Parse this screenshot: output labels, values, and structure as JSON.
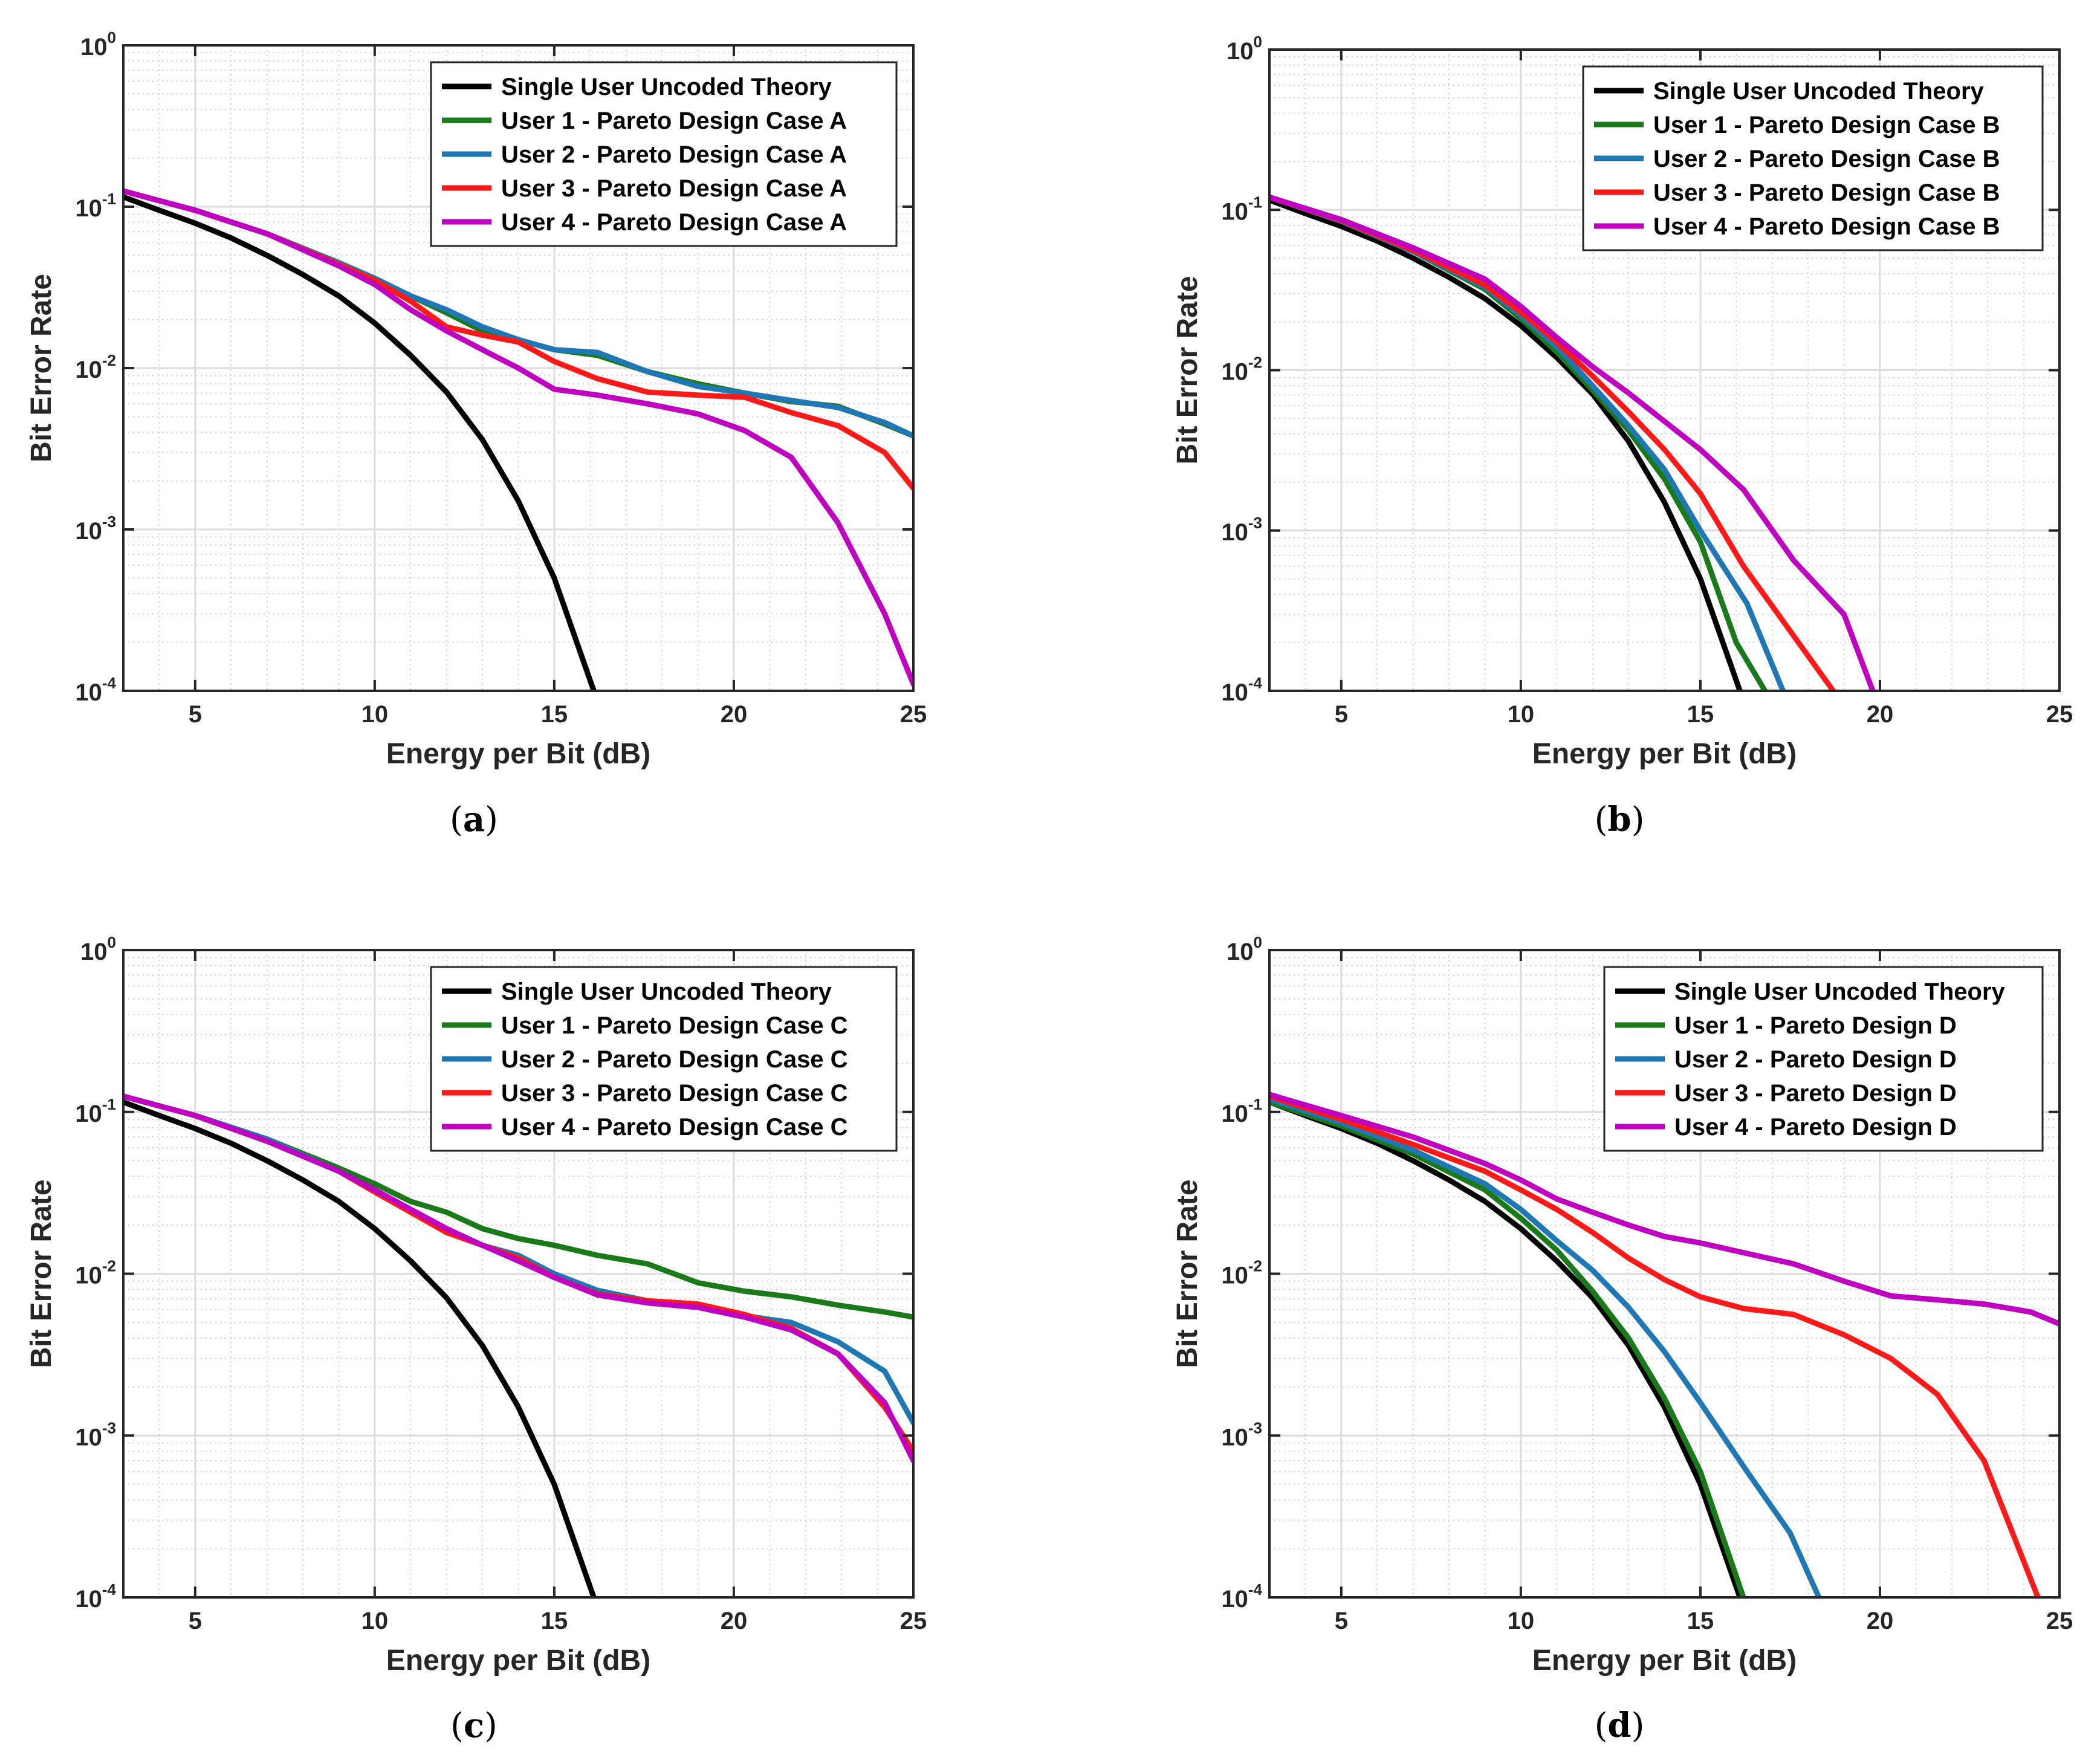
{
  "colors": {
    "series": [
      "#000000",
      "#1a7a1a",
      "#1f77b4",
      "#ff1a1a",
      "#c000c0"
    ],
    "grid_major": "#dcdcdc",
    "grid_minor": "#cfcfcf",
    "axis": "#262626"
  },
  "chart_data": [
    {
      "type": "line",
      "panel": "a",
      "caption_letter": "a",
      "xlabel": "Energy per Bit (dB)",
      "ylabel": "Bit Error Rate",
      "yscale": "log",
      "xlim": [
        3,
        25
      ],
      "ylim": [
        0.0001,
        1
      ],
      "xticks": [
        5,
        10,
        15,
        20,
        25
      ],
      "yticks_exp": [
        "0",
        "-1",
        "-2",
        "-3",
        "-4"
      ],
      "legend_position": "top-right",
      "series": [
        {
          "name": "Single User Uncoded Theory",
          "x": [
            3,
            4,
            5,
            6,
            7,
            8,
            9,
            10,
            11,
            12,
            13,
            14,
            15,
            16.1
          ],
          "y": [
            0.115,
            0.095,
            0.079,
            0.064,
            0.05,
            0.038,
            0.028,
            0.019,
            0.012,
            0.0071,
            0.0036,
            0.0015,
            0.0005,
            0.0001
          ]
        },
        {
          "name": "User 1 - Pareto Design Case A",
          "x": [
            3,
            5,
            7,
            9,
            10,
            11,
            12,
            13,
            14,
            15,
            16.2,
            17.6,
            19,
            20.3,
            21.6,
            22.9,
            24.2,
            25
          ],
          "y": [
            0.125,
            0.095,
            0.068,
            0.045,
            0.036,
            0.028,
            0.022,
            0.017,
            0.015,
            0.013,
            0.012,
            0.0095,
            0.008,
            0.007,
            0.0062,
            0.0058,
            0.0045,
            0.0038
          ]
        },
        {
          "name": "User 2 - Pareto Design Case A",
          "x": [
            3,
            5,
            7,
            9,
            10,
            11,
            12,
            13,
            14,
            15,
            16.2,
            17.6,
            19,
            20.3,
            21.6,
            22.9,
            24.2,
            25
          ],
          "y": [
            0.125,
            0.095,
            0.068,
            0.045,
            0.036,
            0.028,
            0.023,
            0.018,
            0.015,
            0.013,
            0.0125,
            0.0095,
            0.0077,
            0.007,
            0.0063,
            0.0057,
            0.0046,
            0.0038
          ]
        },
        {
          "name": "User 3 - Pareto Design Case A",
          "x": [
            3,
            5,
            7,
            9,
            10,
            11,
            12,
            13,
            14,
            15,
            16.2,
            17.6,
            19,
            20.3,
            21.6,
            22.9,
            24.2,
            25
          ],
          "y": [
            0.125,
            0.095,
            0.068,
            0.044,
            0.035,
            0.026,
            0.018,
            0.016,
            0.0145,
            0.011,
            0.0086,
            0.0071,
            0.0068,
            0.0066,
            0.0053,
            0.0044,
            0.003,
            0.0018
          ]
        },
        {
          "name": "User 4 - Pareto Design Case A",
          "x": [
            3,
            5,
            7,
            9,
            10,
            11,
            12,
            13,
            14,
            15,
            16.2,
            17.6,
            19,
            20.3,
            21.6,
            22.9,
            24.2,
            25
          ],
          "y": [
            0.125,
            0.095,
            0.068,
            0.043,
            0.033,
            0.023,
            0.017,
            0.013,
            0.01,
            0.0074,
            0.0068,
            0.006,
            0.0052,
            0.0041,
            0.0028,
            0.0011,
            0.0003,
            0.00011
          ]
        }
      ]
    },
    {
      "type": "line",
      "panel": "b",
      "caption_letter": "b",
      "xlabel": "Energy per Bit (dB)",
      "ylabel": "Bit Error Rate",
      "yscale": "log",
      "xlim": [
        3,
        25
      ],
      "ylim": [
        0.0001,
        1
      ],
      "xticks": [
        5,
        10,
        15,
        20,
        25
      ],
      "yticks_exp": [
        "0",
        "-1",
        "-2",
        "-3",
        "-4"
      ],
      "legend_position": "top-right",
      "series": [
        {
          "name": "Single User Uncoded Theory",
          "x": [
            3,
            4,
            5,
            6,
            7,
            8,
            9,
            10,
            11,
            12,
            13,
            14,
            15,
            16.1
          ],
          "y": [
            0.115,
            0.095,
            0.079,
            0.064,
            0.05,
            0.038,
            0.028,
            0.019,
            0.012,
            0.0071,
            0.0036,
            0.0015,
            0.0005,
            0.0001
          ]
        },
        {
          "name": "User 1 - Pareto Design Case B",
          "x": [
            3,
            5,
            7,
            9,
            10,
            11,
            12,
            13,
            14,
            15,
            16,
            16.8
          ],
          "y": [
            0.12,
            0.085,
            0.055,
            0.032,
            0.021,
            0.013,
            0.0075,
            0.0042,
            0.0021,
            0.00085,
            0.0002,
            0.0001
          ]
        },
        {
          "name": "User 2 - Pareto Design Case B",
          "x": [
            3,
            5,
            7,
            9,
            10,
            11,
            12,
            13,
            14,
            15,
            16.3,
            17.3
          ],
          "y": [
            0.12,
            0.085,
            0.055,
            0.033,
            0.022,
            0.014,
            0.008,
            0.0045,
            0.0024,
            0.001,
            0.00035,
            0.0001
          ]
        },
        {
          "name": "User 3 - Pareto Design Case B",
          "x": [
            3,
            5,
            7,
            9,
            10,
            11,
            12,
            13,
            14,
            15,
            16.2,
            17.6,
            18.7
          ],
          "y": [
            0.12,
            0.086,
            0.056,
            0.034,
            0.023,
            0.015,
            0.0092,
            0.0055,
            0.0032,
            0.0017,
            0.0006,
            0.00022,
            0.0001
          ]
        },
        {
          "name": "User 4 - Pareto Design Case B",
          "x": [
            3,
            5,
            7,
            9,
            10,
            11,
            12,
            13,
            14,
            15,
            16.2,
            17.6,
            19,
            19.8
          ],
          "y": [
            0.12,
            0.087,
            0.058,
            0.037,
            0.025,
            0.016,
            0.0105,
            0.0072,
            0.0048,
            0.0032,
            0.0018,
            0.00065,
            0.0003,
            0.0001
          ]
        }
      ]
    },
    {
      "type": "line",
      "panel": "c",
      "caption_letter": "c",
      "xlabel": "Energy per Bit (dB)",
      "ylabel": "Bit Error Rate",
      "yscale": "log",
      "xlim": [
        3,
        25
      ],
      "ylim": [
        0.0001,
        1
      ],
      "xticks": [
        5,
        10,
        15,
        20,
        25
      ],
      "yticks_exp": [
        "0",
        "-1",
        "-2",
        "-3",
        "-4"
      ],
      "legend_position": "top-right",
      "series": [
        {
          "name": "Single User Uncoded Theory",
          "x": [
            3,
            4,
            5,
            6,
            7,
            8,
            9,
            10,
            11,
            12,
            13,
            14,
            15,
            16.1
          ],
          "y": [
            0.115,
            0.095,
            0.079,
            0.064,
            0.05,
            0.038,
            0.028,
            0.019,
            0.012,
            0.0071,
            0.0036,
            0.0015,
            0.0005,
            0.0001
          ]
        },
        {
          "name": "User 1 - Pareto Design Case C",
          "x": [
            3,
            5,
            7,
            9,
            10,
            11,
            12,
            13,
            14,
            15,
            16.2,
            17.6,
            19,
            20.3,
            21.6,
            22.9,
            24.2,
            25
          ],
          "y": [
            0.125,
            0.095,
            0.068,
            0.045,
            0.036,
            0.028,
            0.024,
            0.019,
            0.0165,
            0.015,
            0.013,
            0.0115,
            0.0088,
            0.0078,
            0.0072,
            0.0064,
            0.0058,
            0.0054
          ]
        },
        {
          "name": "User 2 - Pareto Design Case C",
          "x": [
            3,
            5,
            7,
            9,
            10,
            11,
            12,
            13,
            14,
            15,
            16.2,
            17.6,
            19,
            20.3,
            21.6,
            22.9,
            24.2,
            25
          ],
          "y": [
            0.125,
            0.095,
            0.068,
            0.043,
            0.033,
            0.025,
            0.019,
            0.015,
            0.013,
            0.01,
            0.0079,
            0.0068,
            0.0065,
            0.0055,
            0.005,
            0.0038,
            0.0025,
            0.0012
          ]
        },
        {
          "name": "User 3 - Pareto Design Case C",
          "x": [
            3,
            5,
            7,
            9,
            10,
            11,
            12,
            13,
            14,
            15,
            16.2,
            17.6,
            19,
            20.3,
            21.6,
            22.9,
            24.2,
            25
          ],
          "y": [
            0.125,
            0.095,
            0.066,
            0.043,
            0.032,
            0.024,
            0.018,
            0.015,
            0.0125,
            0.0095,
            0.0075,
            0.0068,
            0.0065,
            0.0056,
            0.0046,
            0.0032,
            0.0015,
            0.0008
          ]
        },
        {
          "name": "User 4 - Pareto Design Case C",
          "x": [
            3,
            5,
            7,
            9,
            10,
            11,
            12,
            13,
            14,
            15,
            16.2,
            17.6,
            19,
            20.3,
            21.6,
            22.9,
            24.2,
            25
          ],
          "y": [
            0.125,
            0.095,
            0.066,
            0.043,
            0.033,
            0.025,
            0.019,
            0.015,
            0.012,
            0.0095,
            0.0074,
            0.0066,
            0.0062,
            0.0054,
            0.0045,
            0.0032,
            0.0016,
            0.0007
          ]
        }
      ]
    },
    {
      "type": "line",
      "panel": "d",
      "caption_letter": "d",
      "xlabel": "Energy per Bit (dB)",
      "ylabel": "Bit Error Rate",
      "yscale": "log",
      "xlim": [
        3,
        25
      ],
      "ylim": [
        0.0001,
        1
      ],
      "xticks": [
        5,
        10,
        15,
        20,
        25
      ],
      "yticks_exp": [
        "0",
        "-1",
        "-2",
        "-3",
        "-4"
      ],
      "legend_position": "top-right",
      "series": [
        {
          "name": "Single User Uncoded Theory",
          "x": [
            3,
            4,
            5,
            6,
            7,
            8,
            9,
            10,
            11,
            12,
            13,
            14,
            15,
            16.1
          ],
          "y": [
            0.115,
            0.095,
            0.079,
            0.064,
            0.05,
            0.038,
            0.028,
            0.019,
            0.012,
            0.0071,
            0.0036,
            0.0015,
            0.0005,
            0.0001
          ]
        },
        {
          "name": "User 1 - Pareto Design D",
          "x": [
            3,
            5,
            7,
            9,
            10,
            11,
            12,
            13,
            14,
            15,
            16.2
          ],
          "y": [
            0.115,
            0.082,
            0.055,
            0.033,
            0.022,
            0.014,
            0.0078,
            0.004,
            0.0017,
            0.0006,
            0.0001
          ]
        },
        {
          "name": "User 2 - Pareto Design D",
          "x": [
            3,
            5,
            7,
            9,
            10,
            11,
            12,
            13,
            14,
            15,
            16.3,
            17.5,
            18.3
          ],
          "y": [
            0.12,
            0.086,
            0.058,
            0.036,
            0.025,
            0.016,
            0.0105,
            0.0062,
            0.0033,
            0.0016,
            0.0006,
            0.00025,
            0.0001
          ]
        },
        {
          "name": "User 3 - Pareto Design D",
          "x": [
            3,
            5,
            7,
            9,
            10,
            11,
            12,
            13,
            14,
            15,
            16.2,
            17.6,
            19,
            20.3,
            21.6,
            22.9,
            24.4
          ],
          "y": [
            0.125,
            0.09,
            0.063,
            0.043,
            0.033,
            0.025,
            0.018,
            0.0125,
            0.0092,
            0.0072,
            0.0061,
            0.0056,
            0.0042,
            0.003,
            0.0018,
            0.0007,
            0.0001
          ]
        },
        {
          "name": "User 4 - Pareto Design D",
          "x": [
            3,
            5,
            7,
            9,
            10,
            11,
            12,
            13,
            14,
            15,
            16.2,
            17.6,
            19,
            20.3,
            21.6,
            22.9,
            24.2,
            25
          ],
          "y": [
            0.128,
            0.095,
            0.07,
            0.048,
            0.038,
            0.029,
            0.024,
            0.02,
            0.017,
            0.0155,
            0.0135,
            0.0115,
            0.009,
            0.0073,
            0.0069,
            0.0065,
            0.0058,
            0.0049
          ]
        }
      ]
    }
  ]
}
